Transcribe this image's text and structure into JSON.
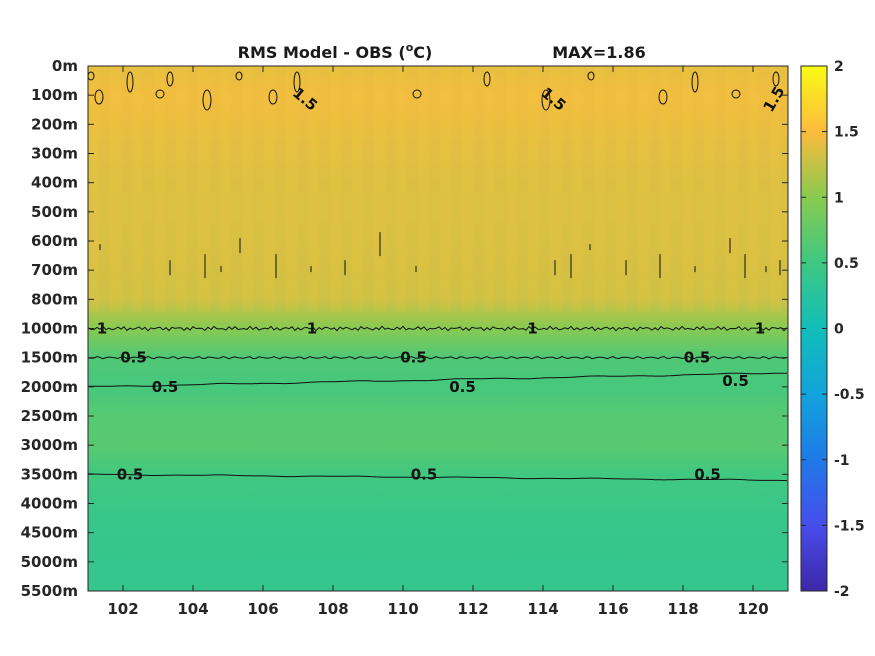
{
  "chart_data": {
    "type": "heatmap",
    "title": "RMS Model - OBS (",
    "title_unit_sup": "o",
    "title_unit_end": "C)",
    "max_label": "MAX=1.86",
    "x_ticks": [
      102,
      104,
      106,
      108,
      110,
      112,
      114,
      116,
      118,
      120
    ],
    "xlim": [
      101,
      121
    ],
    "y_ticks": [
      "0m",
      "100m",
      "200m",
      "300m",
      "400m",
      "500m",
      "600m",
      "700m",
      "800m",
      "1000m",
      "1500m",
      "2000m",
      "2500m",
      "3000m",
      "3500m",
      "4000m",
      "4500m",
      "5000m",
      "5500m"
    ],
    "colorbar": {
      "range": [
        -2,
        2
      ],
      "ticks": [
        2,
        1.5,
        1,
        0.5,
        0,
        -0.5,
        -1,
        -1.5,
        -2
      ],
      "tick_labels": [
        "2",
        "1.5",
        "1",
        "0.5",
        "0",
        "-0.5",
        "-1",
        "-1.5",
        "-2"
      ],
      "colormap": "parula"
    },
    "depth_profile": {
      "levels": [
        "0m",
        "100m",
        "200m",
        "300m",
        "400m",
        "500m",
        "600m",
        "700m",
        "800m",
        "1000m",
        "1500m",
        "2000m",
        "2500m",
        "3000m",
        "3500m",
        "4000m",
        "4500m",
        "5000m",
        "5500m"
      ],
      "values": [
        1.4,
        1.45,
        1.42,
        1.38,
        1.36,
        1.35,
        1.34,
        1.33,
        1.3,
        0.98,
        0.62,
        0.55,
        0.66,
        0.68,
        0.52,
        0.45,
        0.42,
        0.4,
        0.4
      ]
    },
    "contour_labels": [
      {
        "text": "1.5",
        "x": 107.2,
        "level": "100m",
        "rot": 40
      },
      {
        "text": "1.5",
        "x": 114.3,
        "level": "100m",
        "rot": 40
      },
      {
        "text": "1.5",
        "x": 120.6,
        "level": "100m",
        "rot": -60
      },
      {
        "text": "1",
        "x": 101.4,
        "level": "1000m",
        "rot": 0
      },
      {
        "text": "1",
        "x": 107.4,
        "level": "1000m",
        "rot": 0
      },
      {
        "text": "1",
        "x": 113.7,
        "level": "1000m",
        "rot": 0
      },
      {
        "text": "1",
        "x": 120.2,
        "level": "1000m",
        "rot": 0
      },
      {
        "text": "0.5",
        "x": 102.3,
        "level": "1500m",
        "rot": 0
      },
      {
        "text": "0.5",
        "x": 110.3,
        "level": "1500m",
        "rot": 0
      },
      {
        "text": "0.5",
        "x": 118.4,
        "level": "1500m",
        "rot": 0
      },
      {
        "text": "0.5",
        "x": 103.2,
        "level": "2000m",
        "rot": 0
      },
      {
        "text": "0.5",
        "x": 111.7,
        "level": "2000m",
        "rot": 0
      },
      {
        "text": "0.5",
        "x": 119.5,
        "level": "1900m",
        "rot": 0
      },
      {
        "text": "0.5",
        "x": 102.2,
        "level": "3500m",
        "rot": 0
      },
      {
        "text": "0.5",
        "x": 110.6,
        "level": "3500m",
        "rot": 0
      },
      {
        "text": "0.5",
        "x": 118.7,
        "level": "3500m",
        "rot": 0
      }
    ]
  }
}
